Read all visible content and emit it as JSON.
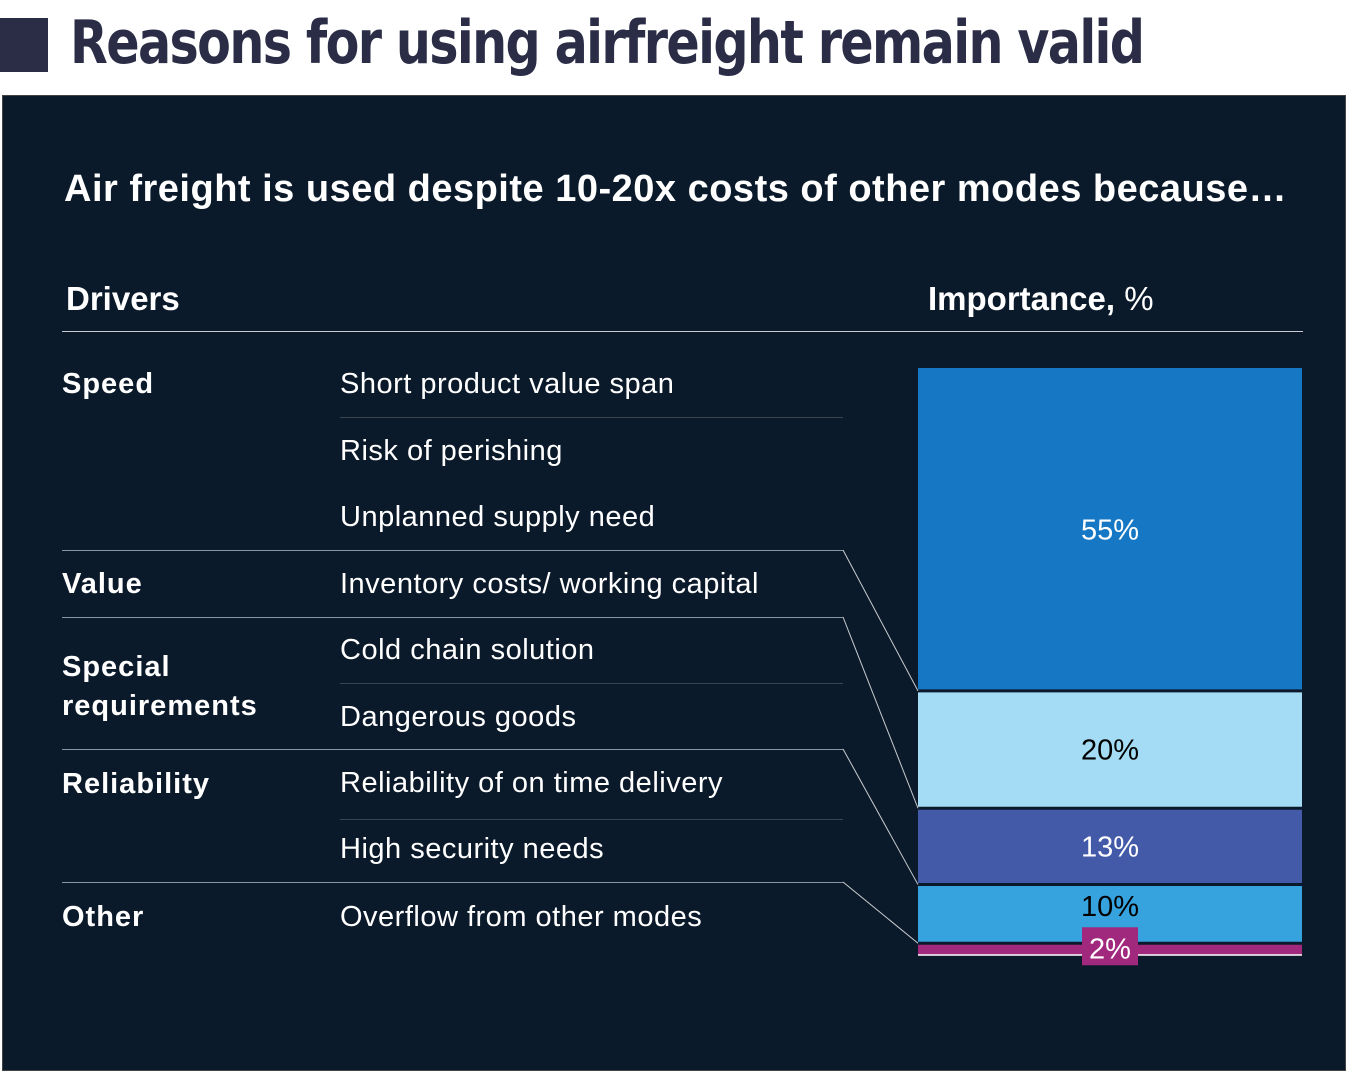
{
  "header": {
    "title": "Reasons for using airfreight remain valid"
  },
  "subtitle": "Air freight is used despite 10-20x costs of other modes because…",
  "columns": {
    "drivers": "Drivers",
    "importance": "Importance,",
    "unit": "%"
  },
  "categories": [
    {
      "name": "Speed",
      "drivers": [
        "Short product value span",
        "Risk of perishing",
        "Unplanned supply need"
      ]
    },
    {
      "name": "Value",
      "drivers": [
        "Inventory costs/ working capital"
      ]
    },
    {
      "name": "Special requirements",
      "drivers": [
        "Cold chain solution",
        "Dangerous goods"
      ]
    },
    {
      "name": "Reliability",
      "drivers": [
        "Reliability of on time delivery",
        "High security needs"
      ]
    },
    {
      "name": "Other",
      "drivers": [
        "Overflow from other modes"
      ]
    }
  ],
  "chart_data": {
    "type": "bar",
    "stacked": true,
    "categories": [
      "Speed",
      "Value",
      "Special requirements",
      "Reliability",
      "Other"
    ],
    "values": [
      55,
      20,
      13,
      10,
      2
    ],
    "labels": [
      "55%",
      "20%",
      "13%",
      "10%",
      "2%"
    ],
    "colors": [
      "#1677c4",
      "#a3dcf4",
      "#435aa8",
      "#36a2de",
      "#a0297e"
    ],
    "label_colors": [
      "#ffffff",
      "#000000",
      "#ffffff",
      "#000000",
      "#ffffff"
    ],
    "ylim": [
      0,
      100
    ]
  }
}
